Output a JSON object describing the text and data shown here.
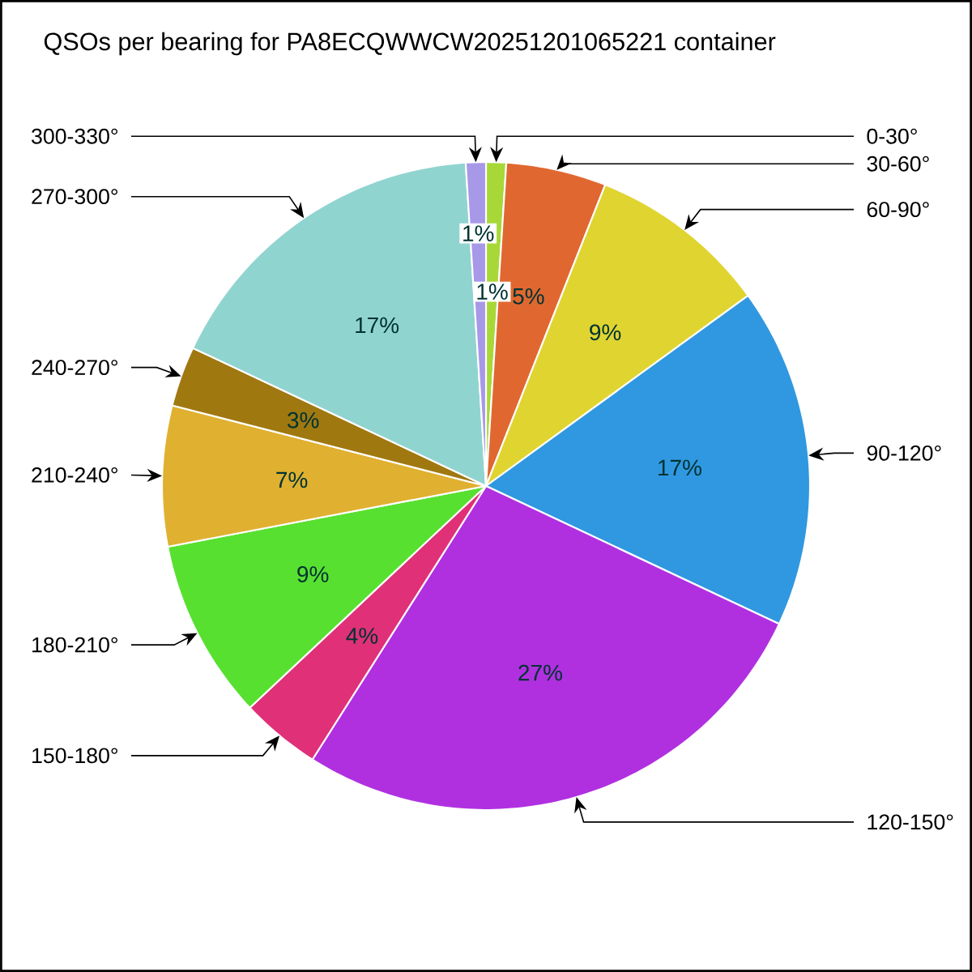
{
  "chart_data": {
    "type": "pie",
    "title": "QSOs per bearing for PA8ECQWWCW20251201065221 container",
    "categories": [
      "0-30°",
      "30-60°",
      "60-90°",
      "90-120°",
      "120-150°",
      "150-180°",
      "180-210°",
      "210-240°",
      "240-270°",
      "270-300°",
      "300-330°"
    ],
    "values": [
      1,
      5,
      9,
      17,
      27,
      4,
      9,
      7,
      3,
      17,
      1
    ],
    "value_labels": [
      "1%",
      "5%",
      "9%",
      "17%",
      "27%",
      "4%",
      "9%",
      "7%",
      "3%",
      "17%",
      "1%"
    ],
    "colors": [
      "#a8d838",
      "#e06830",
      "#e0d430",
      "#3098e0",
      "#b030e0",
      "#e03078",
      "#58e030",
      "#e0b030",
      "#a07810",
      "#90d4d0",
      "#a898e8"
    ]
  }
}
